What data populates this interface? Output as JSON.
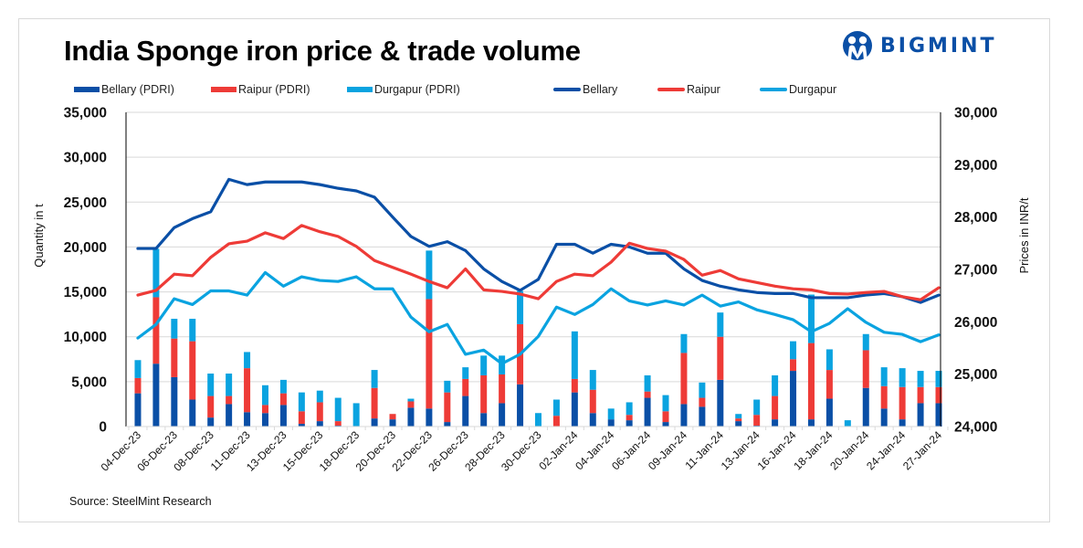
{
  "title": "India Sponge iron price & trade volume",
  "brand": {
    "name": "BIGMINT",
    "color": "#0a4fa6",
    "icon": "people-logo-icon"
  },
  "source": "Source: SteelMint Research",
  "colors": {
    "bellary": "#0a4fa6",
    "raipur": "#ee3b37",
    "durgapur": "#0aa3e0",
    "grid": "#d9d9d9"
  },
  "legend": [
    {
      "label": "Bellary (PDRI)",
      "kind": "bar",
      "color": "#0a4fa6"
    },
    {
      "label": "Raipur (PDRI)",
      "kind": "bar",
      "color": "#ee3b37"
    },
    {
      "label": "Durgapur (PDRI)",
      "kind": "bar",
      "color": "#0aa3e0"
    },
    {
      "label": "Bellary",
      "kind": "line",
      "color": "#0a4fa6"
    },
    {
      "label": "Raipur",
      "kind": "line",
      "color": "#ee3b37"
    },
    {
      "label": "Durgapur",
      "kind": "line",
      "color": "#0aa3e0"
    }
  ],
  "chart_data": {
    "type": "bar",
    "subtype": "stacked bar + line (dual axis)",
    "title": "India Sponge iron price & trade volume",
    "ylabel": "Quantity in t",
    "y2label": "Prices in INR/t",
    "ylim": [
      0,
      35000
    ],
    "y2lim": [
      24000,
      30000
    ],
    "yticks": [
      "0",
      "5,000",
      "10,000",
      "15,000",
      "20,000",
      "25,000",
      "30,000",
      "35,000"
    ],
    "y2ticks": [
      "24,000",
      "25,000",
      "26,000",
      "27,000",
      "28,000",
      "29,000",
      "30,000"
    ],
    "grid": true,
    "legend_position": "top",
    "x_tick_labels": [
      "04-Dec-23",
      "06-Dec-23",
      "08-Dec-23",
      "11-Dec-23",
      "13-Dec-23",
      "15-Dec-23",
      "18-Dec-23",
      "20-Dec-23",
      "22-Dec-23",
      "26-Dec-23",
      "28-Dec-23",
      "30-Dec-23",
      "02-Jan-24",
      "04-Jan-24",
      "06-Jan-24",
      "09-Jan-24",
      "11-Jan-24",
      "13-Jan-24",
      "16-Jan-24",
      "18-Jan-24",
      "20-Jan-24",
      "24-Jan-24",
      "27-Jan-24"
    ],
    "x_count": 45,
    "bar_series": [
      {
        "name": "Bellary (PDRI)",
        "axis": "left",
        "values": [
          3700,
          7000,
          5500,
          3000,
          1000,
          2500,
          1600,
          1500,
          2400,
          300,
          600,
          100,
          0,
          900,
          800,
          2100,
          2000,
          500,
          3400,
          1500,
          2600,
          4700,
          0,
          0,
          3800,
          1500,
          800,
          700,
          3200,
          500,
          2500,
          2200,
          5200,
          600,
          100,
          800,
          6200,
          800,
          3100,
          0,
          4300,
          2000,
          800,
          2600,
          2600
        ]
      },
      {
        "name": "Raipur (PDRI)",
        "axis": "left",
        "values": [
          1700,
          7400,
          4300,
          6500,
          2400,
          900,
          4900,
          900,
          1300,
          1400,
          2100,
          500,
          0,
          3400,
          600,
          700,
          12200,
          3300,
          1900,
          4200,
          3200,
          6700,
          0,
          1200,
          1500,
          2600,
          0,
          600,
          700,
          1200,
          5700,
          1000,
          4800,
          300,
          1200,
          2600,
          1300,
          8500,
          3200,
          0,
          4200,
          2500,
          3600,
          1800,
          1800
        ]
      },
      {
        "name": "Durgapur (PDRI)",
        "axis": "left",
        "values": [
          2000,
          5400,
          2200,
          2500,
          2500,
          2500,
          1800,
          2200,
          1500,
          2100,
          1300,
          2600,
          2600,
          2000,
          0,
          300,
          5400,
          1300,
          1300,
          2200,
          2100,
          3700,
          1500,
          1800,
          5300,
          2200,
          1200,
          1400,
          1800,
          1800,
          2100,
          1700,
          2700,
          500,
          1700,
          2300,
          2000,
          5400,
          2300,
          700,
          1800,
          2100,
          2100,
          1800,
          1800
        ]
      }
    ],
    "line_series": [
      {
        "name": "Bellary",
        "axis": "right",
        "values": [
          27400,
          27400,
          27800,
          27970,
          28100,
          28720,
          28620,
          28670,
          28670,
          28670,
          28620,
          28550,
          28500,
          28380,
          28000,
          27630,
          27440,
          27530,
          27360,
          27010,
          26770,
          26600,
          26810,
          27480,
          27480,
          27310,
          27480,
          27430,
          27310,
          27310,
          27010,
          26790,
          26680,
          26610,
          26560,
          26540,
          26540,
          26460,
          26460,
          26460,
          26510,
          26540,
          26480,
          26370,
          26510
        ]
      },
      {
        "name": "Raipur",
        "axis": "right",
        "values": [
          26510,
          26600,
          26910,
          26880,
          27230,
          27490,
          27540,
          27700,
          27590,
          27840,
          27720,
          27630,
          27440,
          27170,
          27040,
          26910,
          26770,
          26650,
          27010,
          26610,
          26580,
          26530,
          26440,
          26770,
          26910,
          26880,
          27140,
          27500,
          27400,
          27350,
          27190,
          26890,
          26980,
          26820,
          26750,
          26680,
          26630,
          26610,
          26540,
          26530,
          26560,
          26580,
          26480,
          26420,
          26650
        ]
      },
      {
        "name": "Durgapur",
        "axis": "right",
        "values": [
          25690,
          25950,
          26440,
          26330,
          26590,
          26590,
          26510,
          26940,
          26680,
          26860,
          26790,
          26770,
          26860,
          26630,
          26630,
          26090,
          25810,
          25950,
          25380,
          25460,
          25200,
          25380,
          25720,
          26280,
          26140,
          26330,
          26630,
          26400,
          26320,
          26400,
          26320,
          26510,
          26300,
          26380,
          26230,
          26140,
          26040,
          25810,
          25970,
          26250,
          25990,
          25800,
          25760,
          25620,
          25750
        ]
      }
    ]
  }
}
